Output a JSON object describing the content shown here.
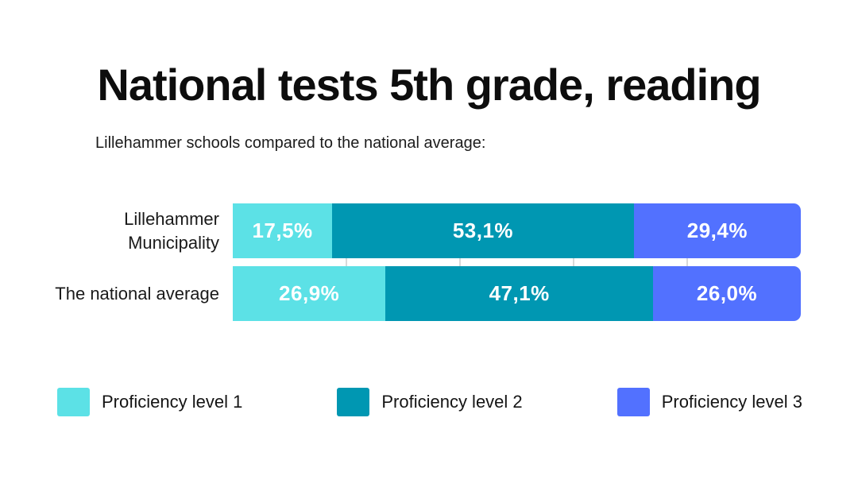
{
  "title": "National tests 5th grade, reading",
  "subtitle": "Lillehammer schools compared to the national average:",
  "chart_data": {
    "type": "bar",
    "orientation": "horizontal",
    "stacked": true,
    "unit": "percent",
    "categories": [
      "Lillehammer Municipality",
      "The national average"
    ],
    "series": [
      {
        "name": "Proficiency level 1",
        "color": "#5CE1E6",
        "values": [
          17.5,
          26.9
        ],
        "labels": [
          "17,5%",
          "26,9%"
        ]
      },
      {
        "name": "Proficiency level 2",
        "color": "#0097B2",
        "values": [
          53.1,
          47.1
        ],
        "labels": [
          "53,1%",
          "47,1%"
        ]
      },
      {
        "name": "Proficiency level 3",
        "color": "#5271FF",
        "values": [
          29.4,
          26.0
        ],
        "labels": [
          "29,4%",
          "26,0%"
        ]
      }
    ],
    "xlim": [
      0,
      100
    ],
    "gridlines": [
      20,
      40,
      60,
      80
    ],
    "gridline_color": "#d9d9d9",
    "value_label_color": "#ffffff",
    "legend_position": "bottom"
  },
  "legend": {
    "items": [
      {
        "label": "Proficiency level 1",
        "color": "#5CE1E6"
      },
      {
        "label": "Proficiency level 2",
        "color": "#0097B2"
      },
      {
        "label": "Proficiency level 3",
        "color": "#5271FF"
      }
    ]
  },
  "colors": {
    "background": "#ffffff",
    "title_text": "#0d0d0d",
    "body_text": "#1c1c1c"
  }
}
